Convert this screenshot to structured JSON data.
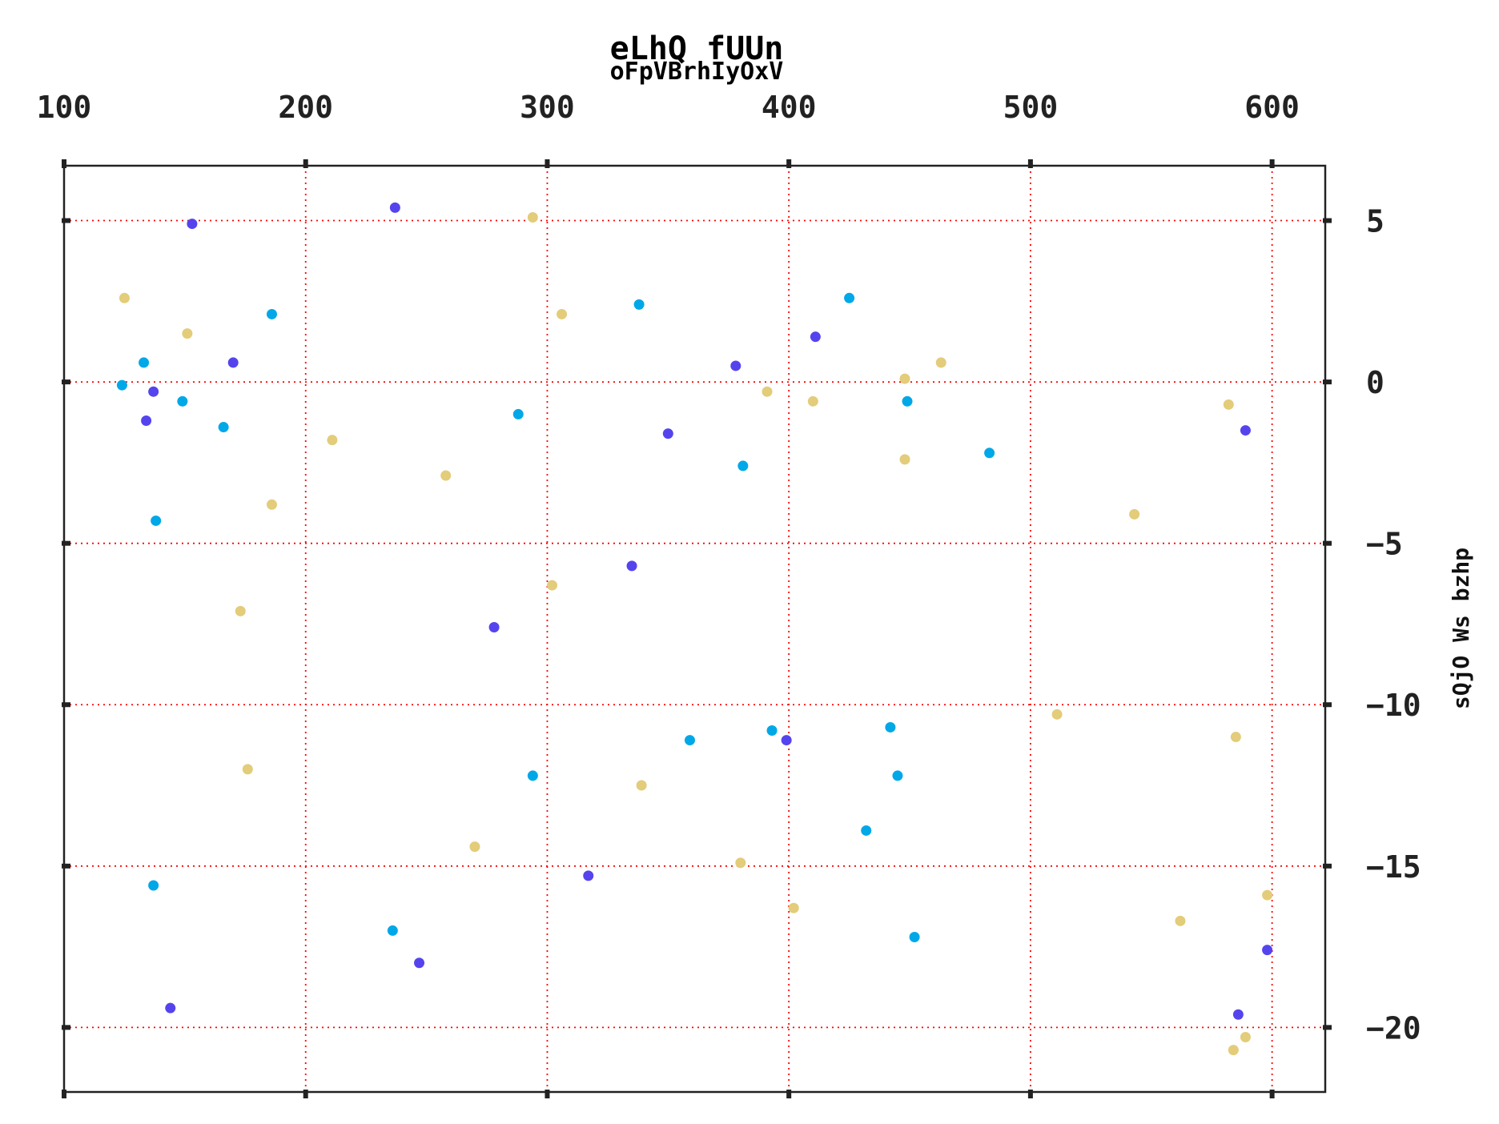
{
  "chart_data": {
    "type": "scatter",
    "title": "eLhQ fUUn",
    "subtitle": "oFpVBrhIyOxV",
    "xlabel": "",
    "ylabel": "sQjO Ws bzhp",
    "x_axis_position": "top",
    "y_axis_position": "right",
    "xlim": [
      100,
      622
    ],
    "ylim": [
      -22,
      6.7
    ],
    "x_ticks": [
      100,
      200,
      300,
      400,
      500,
      600
    ],
    "y_ticks": [
      5,
      0,
      -5,
      -10,
      -15,
      -20
    ],
    "x_tick_labels": [
      "100",
      "200",
      "300",
      "400",
      "500",
      "600"
    ],
    "y_tick_labels": [
      "5",
      "0",
      "−5",
      "−10",
      "−15",
      "−20"
    ],
    "grid": true,
    "grid_color": "#ff0000",
    "series": [
      {
        "color": "#5544ee",
        "points": [
          [
            153,
            4.9
          ],
          [
            237,
            5.4
          ],
          [
            170,
            0.6
          ],
          [
            137,
            -0.3
          ],
          [
            134,
            -1.2
          ],
          [
            411,
            1.4
          ],
          [
            378,
            0.5
          ],
          [
            350,
            -1.6
          ],
          [
            589,
            -1.5
          ],
          [
            335,
            -5.7
          ],
          [
            278,
            -7.6
          ],
          [
            399,
            -11.1
          ],
          [
            317,
            -15.3
          ],
          [
            247,
            -18.0
          ],
          [
            144,
            -19.4
          ],
          [
            598,
            -17.6
          ],
          [
            586,
            -19.6
          ]
        ]
      },
      {
        "color": "#00a8e8",
        "points": [
          [
            186,
            2.1
          ],
          [
            133,
            0.6
          ],
          [
            124,
            -0.1
          ],
          [
            149,
            -0.6
          ],
          [
            166,
            -1.4
          ],
          [
            138,
            -4.3
          ],
          [
            288,
            -1.0
          ],
          [
            338,
            2.4
          ],
          [
            425,
            2.6
          ],
          [
            449,
            -0.6
          ],
          [
            381,
            -2.6
          ],
          [
            483,
            -2.2
          ],
          [
            294,
            -12.2
          ],
          [
            359,
            -11.1
          ],
          [
            393,
            -10.8
          ],
          [
            442,
            -10.7
          ],
          [
            445,
            -12.2
          ],
          [
            432,
            -13.9
          ],
          [
            137,
            -15.6
          ],
          [
            236,
            -17.0
          ],
          [
            452,
            -17.2
          ]
        ]
      },
      {
        "color": "#e3cc7a",
        "points": [
          [
            125,
            2.6
          ],
          [
            151,
            1.5
          ],
          [
            186,
            -3.8
          ],
          [
            211,
            -1.8
          ],
          [
            173,
            -7.1
          ],
          [
            176,
            -12.0
          ],
          [
            258,
            -2.9
          ],
          [
            294,
            5.1
          ],
          [
            306,
            2.1
          ],
          [
            302,
            -6.3
          ],
          [
            339,
            -12.5
          ],
          [
            270,
            -14.4
          ],
          [
            391,
            -0.3
          ],
          [
            410,
            -0.6
          ],
          [
            448,
            0.1
          ],
          [
            463,
            0.6
          ],
          [
            448,
            -2.4
          ],
          [
            380,
            -14.9
          ],
          [
            402,
            -16.3
          ],
          [
            511,
            -10.3
          ],
          [
            543,
            -4.1
          ],
          [
            582,
            -0.7
          ],
          [
            585,
            -11.0
          ],
          [
            562,
            -16.7
          ],
          [
            598,
            -15.9
          ],
          [
            589,
            -20.3
          ],
          [
            584,
            -20.7
          ]
        ]
      }
    ]
  }
}
